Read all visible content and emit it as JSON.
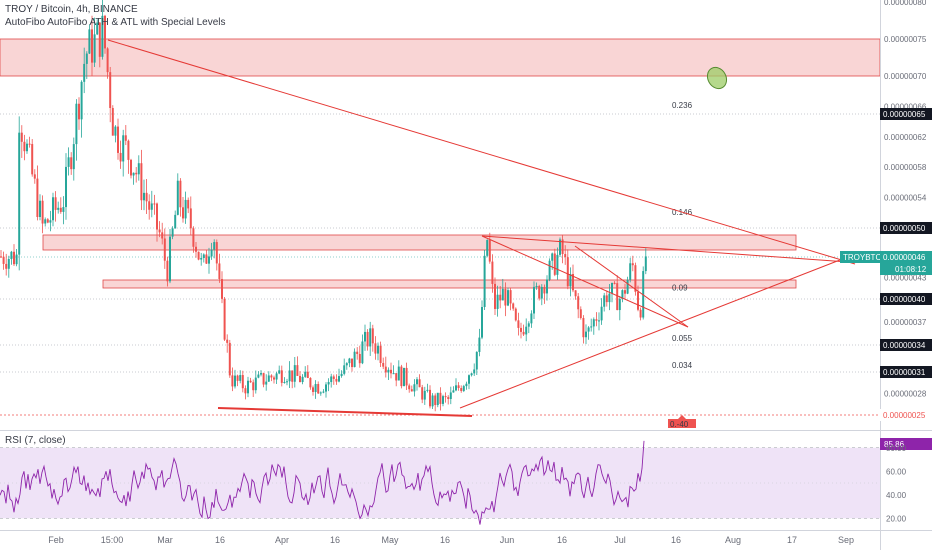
{
  "header": {
    "title": "TROY / Bitcoin, 4h, BINANCE",
    "indicator": "AutoFibo AutoFibo ATH & ATL with Special Levels"
  },
  "rsi_panel": {
    "label": "RSI (7, close)",
    "ticks": [
      "80.00",
      "60.00",
      "40.00",
      "20.00"
    ],
    "current": "85.86"
  },
  "price_axis": {
    "ticks": [
      "0.00000080",
      "0.00000075",
      "0.00000070",
      "0.00000066",
      "0.00000062",
      "0.00000058",
      "0.00000054",
      "0.00000050",
      "0.00000043",
      "0.00000037",
      "0.00000031",
      "0.00000028"
    ],
    "tags": [
      {
        "label": "0.00000065",
        "style": "dark",
        "value": 6.5e-07
      },
      {
        "label": "0.00000050",
        "style": "dark",
        "value": 5e-07
      },
      {
        "label": "0.00000040",
        "style": "dark",
        "value": 4e-07
      },
      {
        "label": "0.00000034",
        "style": "dark",
        "value": 3.4e-07
      },
      {
        "label": "0.00000031",
        "style": "dark",
        "value": 3.1e-07
      },
      {
        "label": "0.00000025",
        "style": "red",
        "value": 2.5e-07
      }
    ],
    "symbol_tag": "TROYBTC",
    "last_price": "0.00000046",
    "countdown": "01:08:12"
  },
  "time_axis": {
    "ticks": [
      "Feb",
      "15:00",
      "Mar",
      "16",
      "Apr",
      "16",
      "May",
      "16",
      "Jun",
      "16",
      "Jul",
      "16",
      "Aug",
      "17",
      "Sep"
    ]
  },
  "fib_levels": [
    {
      "label": "0.236",
      "value": 6.54e-07
    },
    {
      "label": "0.146",
      "value": 5.13e-07
    },
    {
      "label": "0.09",
      "value": 4.08e-07
    },
    {
      "label": "0.055",
      "value": 3.41e-07
    },
    {
      "label": "0.034",
      "value": 3.11e-07
    },
    {
      "label": "0.-40",
      "value": 2.5e-07
    }
  ],
  "colors": {
    "up": "#26a69a",
    "down": "#ef5350",
    "zone": "#f6c3c3",
    "zone_border": "#e04848",
    "trend": "#e53935",
    "rsi_line": "#8e24aa",
    "rsi_band": "#ead9f4",
    "marker": "#9ccc65"
  },
  "chart_data": {
    "type": "candlestick",
    "symbol": "TROY / Bitcoin",
    "interval": "4h",
    "exchange": "BINANCE",
    "x_range": [
      "Jan 21",
      "Jul 16"
    ],
    "y_range": [
      2.2e-07,
      8.2e-07
    ],
    "last_price": 4.6e-07,
    "resistance_zones": [
      {
        "from": 7e-07,
        "to": 7.5e-07
      },
      {
        "from": 4.8e-07,
        "to": 5e-07
      },
      {
        "from": 4.2e-07,
        "to": 4.3e-07
      }
    ],
    "anchors": [
      {
        "date": "Jan 21",
        "price": 6.6e-07
      },
      {
        "date": "Jan 28",
        "price": 5e-07
      },
      {
        "date": "Feb 3",
        "price": 5.4e-07
      },
      {
        "date": "Feb 9",
        "price": 7.3e-07
      },
      {
        "date": "Feb 14",
        "price": 7.6e-07
      },
      {
        "date": "Feb 17",
        "price": 6.3e-07
      },
      {
        "date": "Feb 22",
        "price": 5.9e-07
      },
      {
        "date": "Mar 1",
        "price": 4.9e-07
      },
      {
        "date": "Mar 3",
        "price": 4.4e-07
      },
      {
        "date": "Mar 6",
        "price": 5.4e-07
      },
      {
        "date": "Mar 10",
        "price": 5e-07
      },
      {
        "date": "Mar 13",
        "price": 4.4e-07
      },
      {
        "date": "Mar 16",
        "price": 5e-07
      },
      {
        "date": "Mar 18",
        "price": 4e-07
      },
      {
        "date": "Mar 21",
        "price": 3e-07
      },
      {
        "date": "Mar 25",
        "price": 2.9e-07
      },
      {
        "date": "Apr 5",
        "price": 3.1e-07
      },
      {
        "date": "Apr 15",
        "price": 2.9e-07
      },
      {
        "date": "Apr 22",
        "price": 3.1e-07
      },
      {
        "date": "Apr 29",
        "price": 3.5e-07
      },
      {
        "date": "May 6",
        "price": 3.1e-07
      },
      {
        "date": "May 12",
        "price": 2.9e-07
      },
      {
        "date": "May 16",
        "price": 2.7e-07
      },
      {
        "date": "May 21",
        "price": 2.7e-07
      },
      {
        "date": "May 26",
        "price": 3e-07
      },
      {
        "date": "May 30",
        "price": 3.4e-07
      },
      {
        "date": "Jun 1",
        "price": 4.9e-07
      },
      {
        "date": "Jun 3",
        "price": 3.9e-07
      },
      {
        "date": "Jun 6",
        "price": 4.1e-07
      },
      {
        "date": "Jun 10",
        "price": 3.5e-07
      },
      {
        "date": "Jun 14",
        "price": 4e-07
      },
      {
        "date": "Jun 20",
        "price": 4.5e-07
      },
      {
        "date": "Jun 22",
        "price": 4.7e-07
      },
      {
        "date": "Jun 25",
        "price": 4.1e-07
      },
      {
        "date": "Jun 29",
        "price": 3.5e-07
      },
      {
        "date": "Jul 2",
        "price": 3.8e-07
      },
      {
        "date": "Jul 5",
        "price": 4.1e-07
      },
      {
        "date": "Jul 9",
        "price": 4e-07
      },
      {
        "date": "Jul 12",
        "price": 4.5e-07
      },
      {
        "date": "Jul 14",
        "price": 3.8e-07
      },
      {
        "date": "Jul 16",
        "price": 4.6e-07
      }
    ],
    "rsi": {
      "period": 7,
      "source": "close",
      "last": 85.86,
      "upper": 80,
      "lower": 20
    }
  }
}
